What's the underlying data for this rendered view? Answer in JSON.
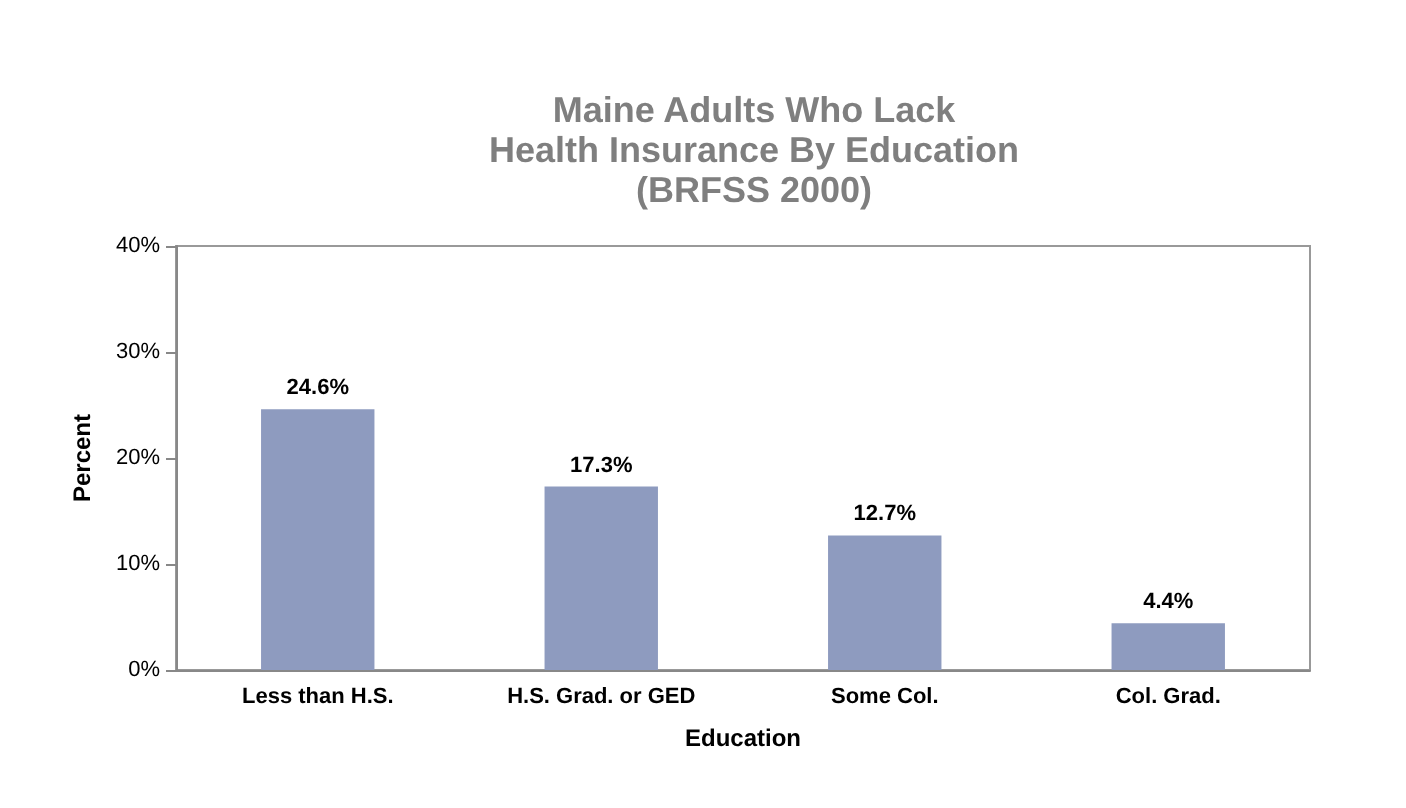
{
  "chart_data": {
    "type": "bar",
    "title": "Maine Adults Who Lack\nHealth Insurance By Education\n(BRFSS 2000)",
    "xlabel": "Education",
    "ylabel": "Percent",
    "categories": [
      "Less than H.S.",
      "H.S. Grad. or GED",
      "Some Col.",
      "Col. Grad."
    ],
    "values": [
      24.6,
      17.3,
      12.7,
      4.4
    ],
    "color": "#8e9bbf",
    "value_labels": [
      "24.6%",
      "17.3%",
      "12.7%",
      "4.4%"
    ],
    "ylim": [
      0,
      40
    ],
    "yticks": [
      {
        "value": 0,
        "label": "0%"
      },
      {
        "value": 10,
        "label": "10%"
      },
      {
        "value": 20,
        "label": "20%"
      },
      {
        "value": 30,
        "label": "30%"
      },
      {
        "value": 40,
        "label": "40%"
      }
    ],
    "grid": false
  }
}
